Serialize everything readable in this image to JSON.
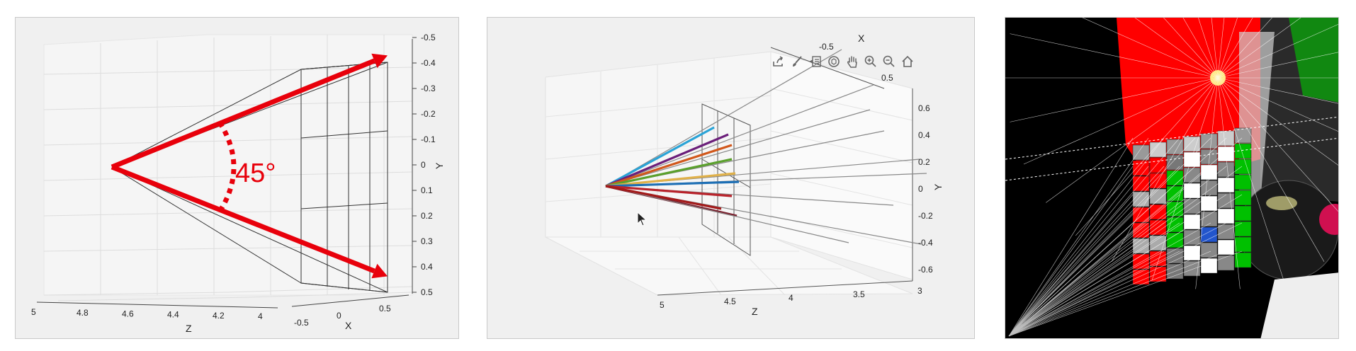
{
  "chart_data": [
    {
      "type": "line",
      "panel": "left",
      "annotation": "45°",
      "xlabel": "Z",
      "ylabel": "Y",
      "zlabel": "X",
      "z_ticks": [
        "5",
        "4.8",
        "4.6",
        "4.4",
        "4.2",
        "4"
      ],
      "x_ticks": [
        "-0.5",
        "0",
        "0.5"
      ],
      "y_ticks": [
        "-0.5",
        "-0.4",
        "-0.3",
        "-0.2",
        "-0.1",
        "0",
        "0.1",
        "0.2",
        "0.3",
        "0.4",
        "0.5"
      ],
      "arrow_color": "#e8000b",
      "series": [
        {
          "points": [
            [
              4.85,
              0.0
            ],
            [
              4.0,
              -0.5
            ]
          ]
        },
        {
          "points": [
            [
              4.85,
              0.0
            ],
            [
              4.0,
              0.5
            ]
          ]
        }
      ]
    },
    {
      "type": "line",
      "panel": "middle",
      "xlabel": "Z",
      "ylabel": "Y",
      "zlabel": "X",
      "z_ticks": [
        "5",
        "4.5",
        "4",
        "3.5",
        "3"
      ],
      "x_ticks": [
        "-0.5",
        "0.5"
      ],
      "y_ticks": [
        "0.6",
        "0.4",
        "0.2",
        "0",
        "-0.2",
        "-0.4",
        "-0.6"
      ],
      "series_colors": [
        "#2aa3d6",
        "#6b1f7a",
        "#d1581c",
        "#5aa02c",
        "#e0b14a",
        "#1d6fb5",
        "#b8232b",
        "#7a1e2c",
        "#a31a1a"
      ]
    }
  ],
  "toolbar": {
    "icons": [
      "export-icon",
      "brush-icon",
      "datatip-icon",
      "rotate-icon",
      "pan-icon",
      "zoom-in-icon",
      "zoom-out-icon",
      "home-icon"
    ]
  },
  "render": {
    "background": "#000000",
    "wall_colors": [
      "#ff0000",
      "#00c000",
      "#ffffff"
    ],
    "light_color": "#ffe36b"
  }
}
